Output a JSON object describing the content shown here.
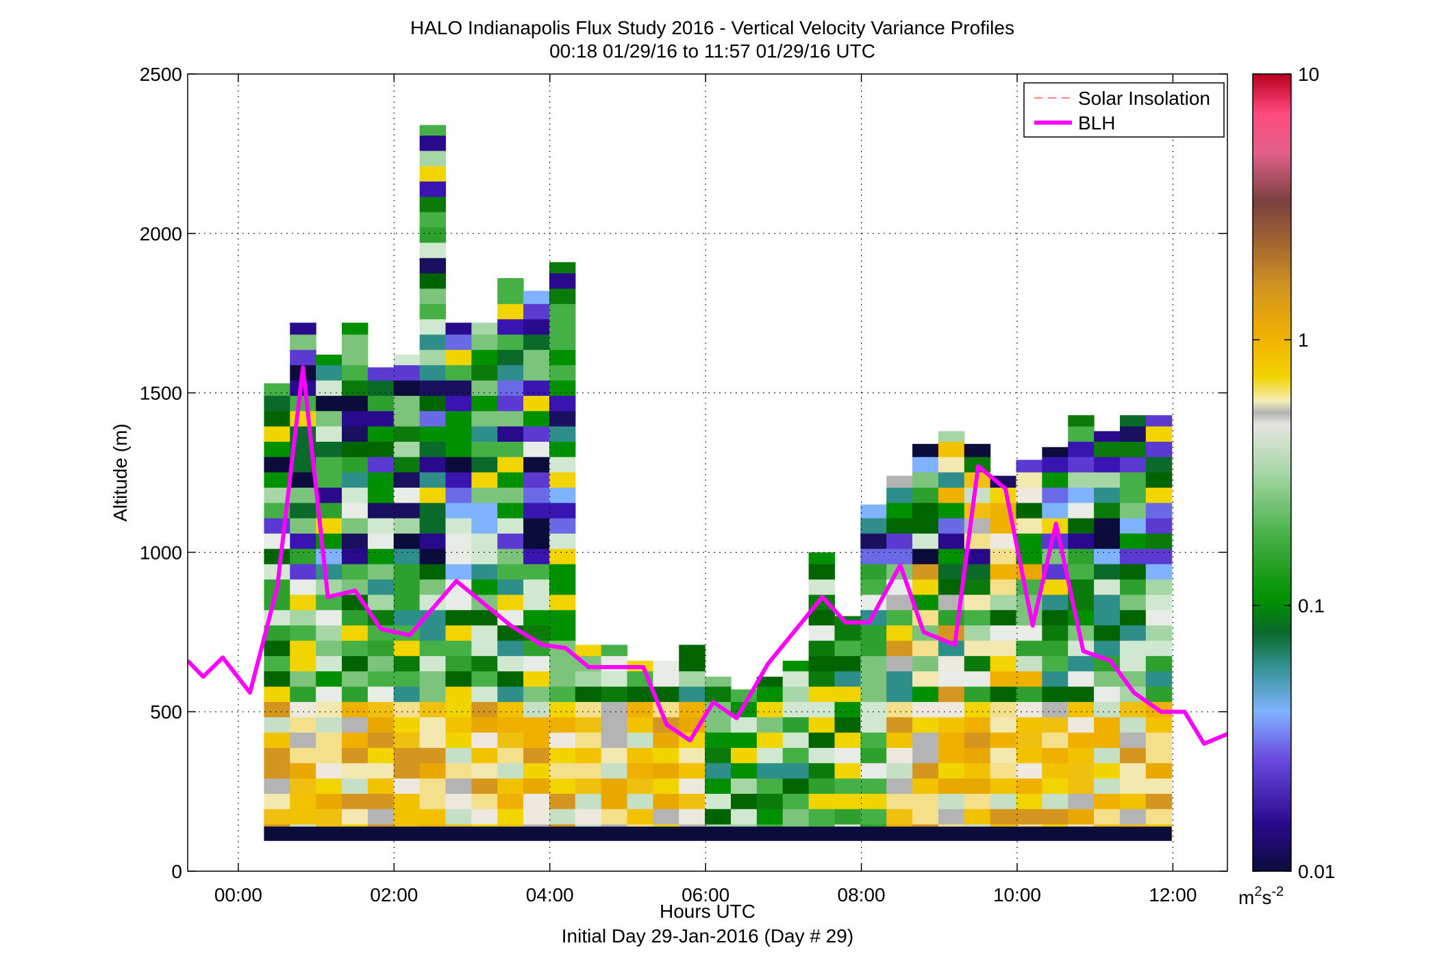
{
  "chart_data": {
    "type": "heatmap",
    "title": "HALO Indianapolis Flux Study 2016 - Vertical Velocity Variance Profiles",
    "subtitle": "00:18 01/29/16 to 11:57 01/29/16  UTC",
    "xlabel": "Hours UTC",
    "xlabel2": "Initial Day 29-Jan-2016 (Day # 29)",
    "ylabel": "Altitude (m)",
    "xlim": [
      -0.65,
      12.7
    ],
    "ylim": [
      0,
      2500
    ],
    "x_ticks": [
      0,
      2,
      4,
      6,
      8,
      10,
      12
    ],
    "x_tick_labels": [
      "00:00",
      "02:00",
      "04:00",
      "06:00",
      "08:00",
      "10:00",
      "12:00"
    ],
    "y_ticks": [
      0,
      500,
      1000,
      1500,
      2000,
      2500
    ],
    "y_tick_labels": [
      "0",
      "500",
      "1000",
      "1500",
      "2000",
      "2500"
    ],
    "grid": true,
    "legend": {
      "placement": "top-right",
      "entries": [
        {
          "name": "Solar Insolation",
          "color": "#ff8080",
          "style": "dashed"
        },
        {
          "name": "BLH",
          "color": "#ff00ff",
          "style": "solid"
        }
      ]
    },
    "colorbar": {
      "scale": "log",
      "range": [
        0.01,
        10
      ],
      "tick_values": [
        0.01,
        0.1,
        1,
        10
      ],
      "tick_labels": [
        "0.01",
        "0.1",
        "1",
        "10"
      ],
      "unit_base": "m",
      "unit_sup1": "2",
      "unit_mid": "s",
      "unit_sup2": "-2"
    },
    "heatmap": {
      "x_start": 0.33,
      "bin_width_hours": 0.333,
      "bin_height_m": 48,
      "y_bottom": 100,
      "column_tops_m": [
        1530,
        1720,
        1620,
        1720,
        1580,
        1620,
        2340,
        1720,
        1720,
        1860,
        1820,
        1910,
        710,
        710,
        660,
        660,
        710,
        610,
        570,
        610,
        660,
        1000,
        800,
        1150,
        1240,
        1340,
        1380,
        1340,
        1240,
        1290,
        1330,
        1430,
        1380,
        1430,
        1430
      ]
    },
    "series": [
      {
        "name": "BLH",
        "color": "#ff00ff",
        "x": [
          -0.65,
          -0.45,
          -0.2,
          0.15,
          0.5,
          0.83,
          1.15,
          1.5,
          1.83,
          2.2,
          2.8,
          3.5,
          3.9,
          4.2,
          4.5,
          4.8,
          5.2,
          5.5,
          5.8,
          6.1,
          6.4,
          6.8,
          7.5,
          7.8,
          8.1,
          8.5,
          8.8,
          9.2,
          9.5,
          9.85,
          10.2,
          10.5,
          10.85,
          11.2,
          11.5,
          11.85,
          12.15,
          12.4,
          12.7
        ],
        "y": [
          660,
          610,
          670,
          560,
          890,
          1580,
          860,
          880,
          760,
          740,
          910,
          770,
          710,
          700,
          640,
          640,
          640,
          460,
          410,
          530,
          480,
          650,
          860,
          780,
          780,
          960,
          750,
          710,
          1270,
          1200,
          770,
          1090,
          690,
          660,
          560,
          500,
          500,
          400,
          430
        ]
      }
    ]
  }
}
